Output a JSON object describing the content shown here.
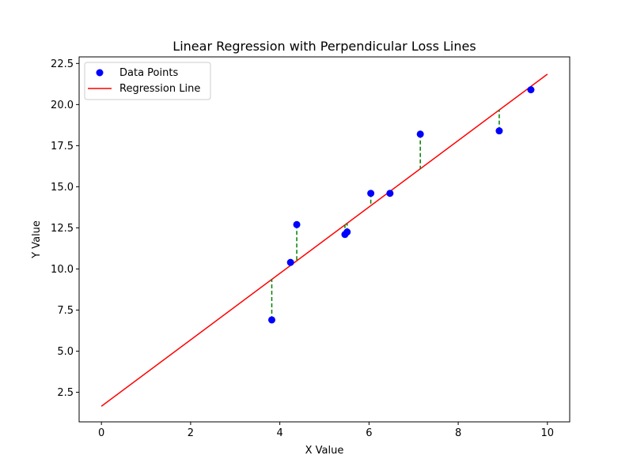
{
  "chart_data": {
    "type": "scatter",
    "title": "Linear Regression with Perpendicular Loss Lines",
    "xlabel": "X Value",
    "ylabel": "Y Value",
    "xlim": [
      -0.5,
      10.5
    ],
    "ylim": [
      0.7,
      22.9
    ],
    "x_ticks": [
      0,
      2,
      4,
      6,
      8,
      10
    ],
    "x_tick_labels": [
      "0",
      "2",
      "4",
      "6",
      "8",
      "10"
    ],
    "y_ticks": [
      2.5,
      5.0,
      7.5,
      10.0,
      12.5,
      15.0,
      17.5,
      20.0,
      22.5
    ],
    "y_tick_labels": [
      "2.5",
      "5.0",
      "7.5",
      "10.0",
      "12.5",
      "15.0",
      "17.5",
      "20.0",
      "22.5"
    ],
    "grid": false,
    "legend_position": "top-left",
    "series": [
      {
        "name": "Data Points",
        "kind": "scatter",
        "color": "#0000ff",
        "x": [
          3.82,
          4.24,
          4.38,
          5.46,
          5.51,
          6.04,
          6.47,
          7.15,
          8.92,
          9.63
        ],
        "y": [
          6.9,
          10.4,
          12.7,
          12.1,
          12.25,
          14.6,
          14.6,
          18.2,
          18.4,
          20.9
        ]
      },
      {
        "name": "Regression Line",
        "kind": "line",
        "color": "#ff0000",
        "x": [
          0,
          10
        ],
        "y": [
          1.65,
          21.85
        ]
      }
    ],
    "loss_lines": {
      "color": "#008000",
      "style": "dashed"
    }
  }
}
